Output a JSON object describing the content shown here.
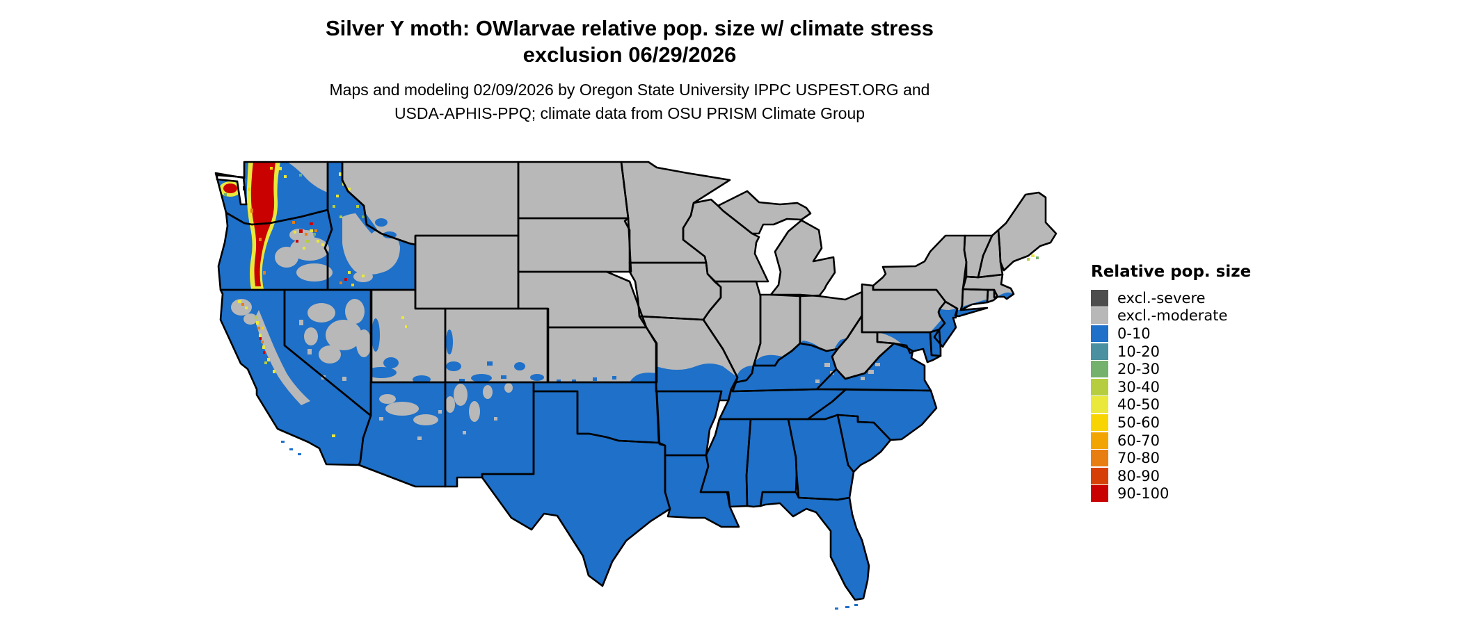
{
  "title": {
    "line1": "Silver Y moth: OWlarvae relative pop. size w/ climate stress",
    "line2": "exclusion 06/29/2026"
  },
  "subtitle": {
    "line1": "Maps and modeling 02/09/2026 by Oregon State University IPPC USPEST.ORG and",
    "line2": "USDA-APHIS-PPQ; climate data from OSU PRISM Climate Group"
  },
  "legend": {
    "title": "Relative pop. size",
    "items": [
      {
        "label": "excl.-severe",
        "color": "#4d4d4d"
      },
      {
        "label": "excl.-moderate",
        "color": "#b8b8b8"
      },
      {
        "label": "0-10",
        "color": "#1e70c8"
      },
      {
        "label": "10-20",
        "color": "#4a90a0"
      },
      {
        "label": "20-30",
        "color": "#74b16c"
      },
      {
        "label": "30-40",
        "color": "#b5cd3e"
      },
      {
        "label": "40-50",
        "color": "#e9e83b"
      },
      {
        "label": "50-60",
        "color": "#f8d403"
      },
      {
        "label": "60-70",
        "color": "#f2a403"
      },
      {
        "label": "70-80",
        "color": "#e87d12"
      },
      {
        "label": "80-90",
        "color": "#d64007"
      },
      {
        "label": "90-100",
        "color": "#c90101"
      }
    ]
  },
  "map": {
    "region": "Contiguous United States",
    "state_border_color": "#000000",
    "water_background_color": "#ffffff",
    "dominant_category_north": "excl.-moderate",
    "dominant_category_south": "0-10",
    "high_value_areas": "Cascade Range and Olympic Mountains (WA/OR), Sierra Nevada fringe (CA), Wallowa/Blue Mountains (NE OR), central Idaho edges, coastal Maine specks"
  }
}
